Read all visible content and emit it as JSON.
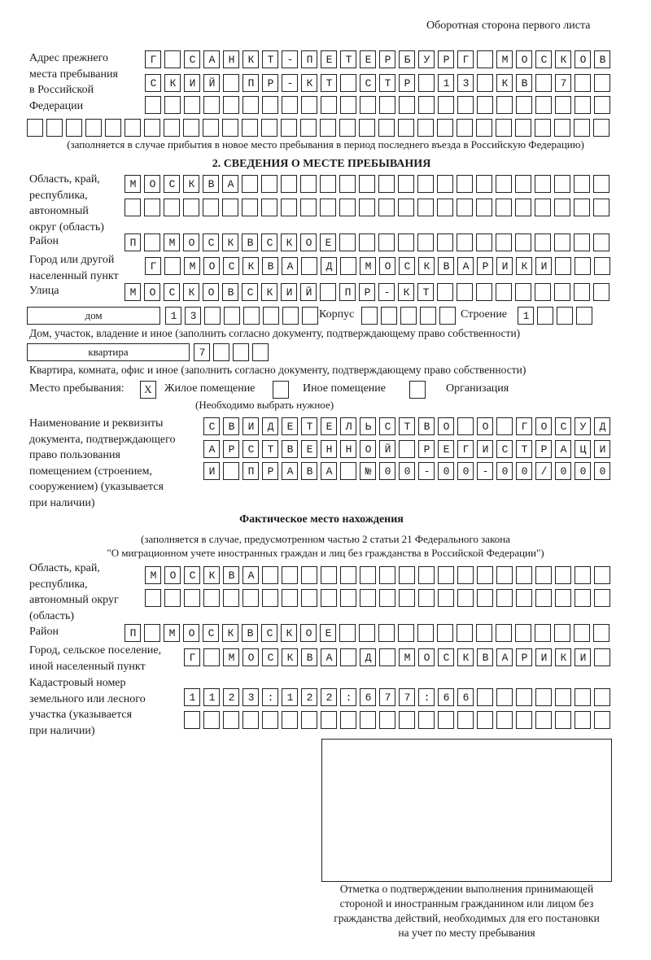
{
  "header": "Оборотная сторона первого листа",
  "prev_address": {
    "label": [
      "Адрес прежнего",
      "места пребывания",
      "в Российской",
      "Федерации"
    ],
    "rows": [
      "Г САНКТ-ПЕТЕРБУРГ МОСКОВ",
      "СКИЙ ПР-КТ СТР 13 КВ 7  ",
      "                        ",
      "                              "
    ],
    "note": "(заполняется в случае прибытия в новое место пребывания в период последнего въезда в Российскую Федерацию)"
  },
  "section2": {
    "title": "2. СВЕДЕНИЯ О МЕСТЕ ПРЕБЫВАНИЯ",
    "region_label": [
      "Область, край,",
      "республика,",
      "автономный",
      "округ (область)"
    ],
    "region_rows": [
      "МОСКВА                   ",
      "                         "
    ],
    "district_label": "Район",
    "district_row": "П МОСКВСКОЕ              ",
    "city_label": [
      "Город или другой",
      "населенный пункт"
    ],
    "city_row": "Г МОСКВА Д МОСКВАРИКИ   ",
    "street_label": "Улица",
    "street_row": "МОСКОВСКИЙ ПР-КТ         ",
    "house_type": "дом",
    "house_cells": "13      ",
    "korpus_label": "Корпус",
    "korpus_cells": "     ",
    "building_label": "Строение",
    "building_cells": "1   ",
    "house_note": "Дом, участок, владение и иное (заполнить согласно документу, подтверждающему право собственности)",
    "flat_type": "квартира",
    "flat_cells": "7   ",
    "flat_note": "Квартира, комната, офис и иное (заполнить согласно документу, подтверждающему право собственности)",
    "stay_label": "Место пребывания:",
    "stay_options": [
      {
        "label": "Жилое помещение",
        "mark": "X"
      },
      {
        "label": "Иное помещение",
        "mark": ""
      },
      {
        "label": "Организация",
        "mark": ""
      }
    ],
    "stay_note": "(Необходимо выбрать нужное)",
    "doc_label": [
      "Наименование и реквизиты",
      "документа, подтверждающего",
      "право пользования",
      "помещением (строением,",
      "сооружением) (указывается",
      "при наличии)"
    ],
    "doc_rows": [
      "СВИДЕТЕЛЬСТВО О ГОСУД",
      "АРСТВЕННОЙ РЕГИСТРАЦИ",
      "И ПРАВА №00-00-00/000"
    ]
  },
  "actual": {
    "title": "Фактическое место нахождения",
    "note": [
      "(заполняется в случае, предусмотренном частью 2 статьи 21 Федерального закона",
      "\"О миграционном учете иностранных граждан и лиц без гражданства в Российской Федерации\")"
    ],
    "region_label": [
      "Область, край,",
      "республика,",
      "автономный округ",
      "(область)"
    ],
    "region_rows": [
      "МОСКВА                  ",
      "                        "
    ],
    "district_label": "Район",
    "district_row": "П МОСКВСКОЕ              ",
    "city_label": [
      "Город, сельское поселение,",
      "иной населенный пункт"
    ],
    "city_row": "Г МОСКВА Д МОСКВАРИКИ ",
    "cadastre_label": [
      "Кадастровый номер",
      "земельного или лесного",
      "участка (указывается",
      "при наличии)"
    ],
    "cadastre_rows": [
      "1123:122:677:66       ",
      "                      "
    ]
  },
  "confirmation_caption": [
    "Отметка о подтверждении выполнения принимающей",
    "стороной и иностранным гражданином или лицом без",
    "гражданства действий, необходимых для его постановки",
    "на учет по месту пребывания"
  ]
}
